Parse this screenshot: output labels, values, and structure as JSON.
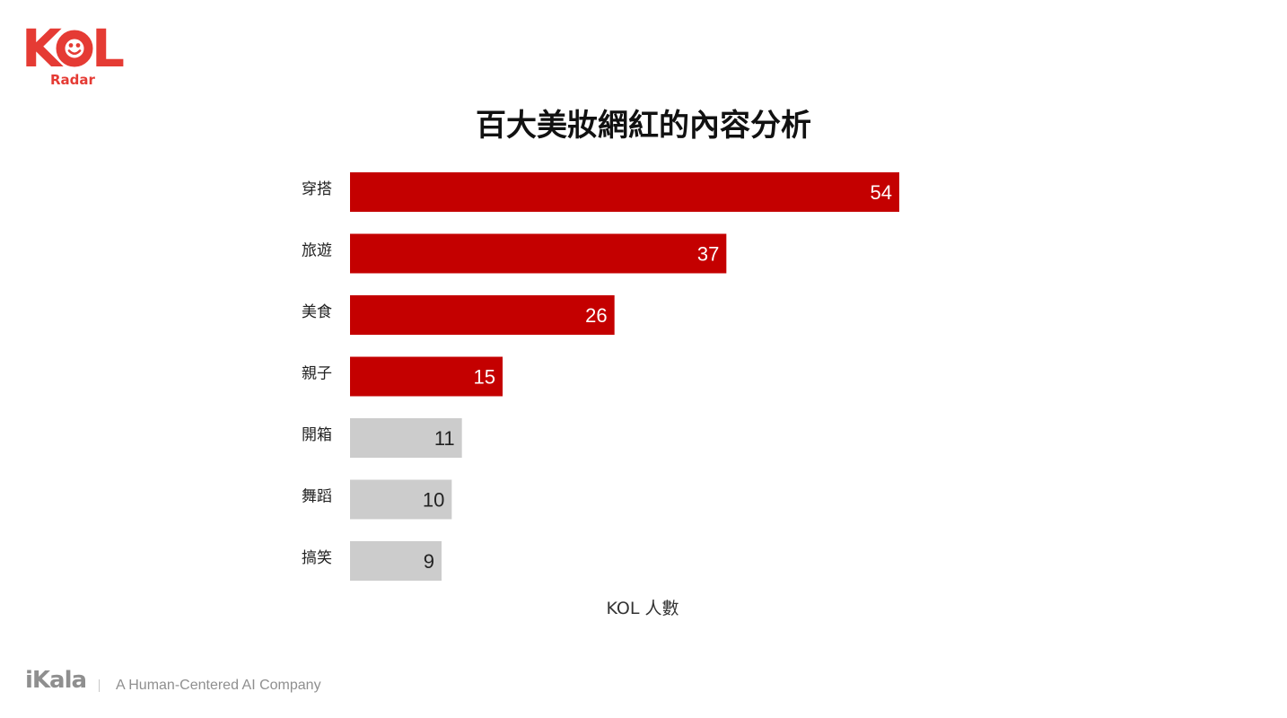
{
  "brand": {
    "logo_k": "K",
    "logo_l": "L",
    "logo_sub": "Radar",
    "footer_brand": "iKala",
    "footer_tagline": "A Human-Centered AI Company",
    "accent": "#e53b34"
  },
  "chart_data": {
    "type": "bar",
    "orientation": "horizontal",
    "title": "百大美妝網紅的內容分析",
    "xlabel": "KOL 人數",
    "ylabel": "",
    "categories": [
      "穿搭",
      "旅遊",
      "美食",
      "親子",
      "開箱",
      "舞蹈",
      "搞笑"
    ],
    "values": [
      54,
      37,
      26,
      15,
      11,
      10,
      9
    ],
    "highlight_count": 4,
    "colors": {
      "highlight": "#c40000",
      "normal": "#cccccc",
      "highlight_label": "#ffffff",
      "normal_label": "#222222"
    },
    "xlim": [
      0,
      54
    ],
    "grid": false,
    "legend": "none"
  }
}
